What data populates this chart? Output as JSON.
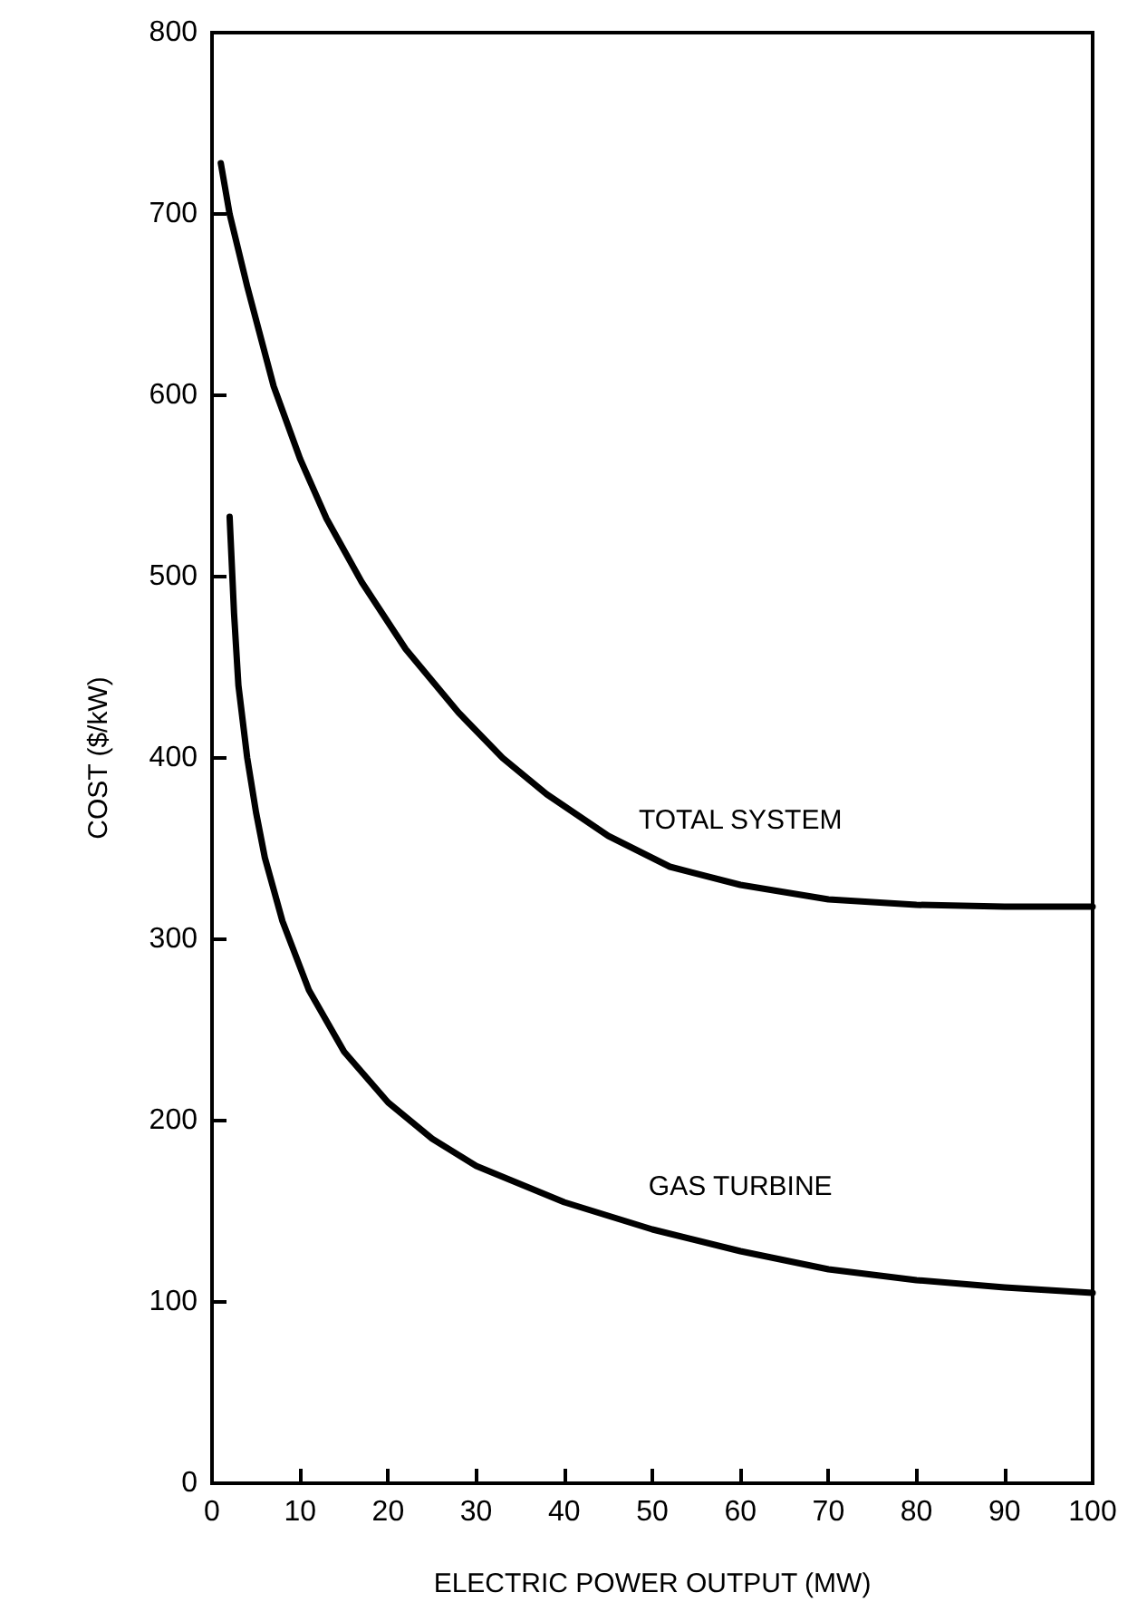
{
  "chart_data": {
    "type": "line",
    "xlabel": "ELECTRIC POWER OUTPUT (MW)",
    "ylabel": "COST ($/kW)",
    "xlim": [
      0,
      100
    ],
    "xticks": [
      0,
      10,
      20,
      30,
      40,
      50,
      60,
      70,
      80,
      90,
      100
    ],
    "ylim": [
      0,
      800
    ],
    "yticks": [
      0,
      100,
      200,
      300,
      400,
      500,
      600,
      700,
      800
    ],
    "grid": false,
    "legend": false,
    "marker": "none",
    "line_style": "solid",
    "series": [
      {
        "name": "TOTAL SYSTEM",
        "color": "#000000",
        "x": [
          1,
          2,
          4,
          7,
          10,
          13,
          17,
          22,
          28,
          33,
          38,
          45,
          52,
          60,
          70,
          80,
          90,
          100
        ],
        "values": [
          728,
          700,
          660,
          605,
          565,
          532,
          497,
          460,
          425,
          400,
          380,
          357,
          340,
          330,
          322,
          319,
          318,
          318
        ]
      },
      {
        "name": "GAS TURBINE",
        "color": "#000000",
        "x": [
          2,
          2.5,
          3,
          4,
          5,
          6,
          8,
          11,
          15,
          20,
          25,
          30,
          40,
          50,
          60,
          70,
          80,
          90,
          100
        ],
        "values": [
          533,
          480,
          440,
          400,
          370,
          345,
          310,
          272,
          238,
          210,
          190,
          175,
          155,
          140,
          128,
          118,
          112,
          108,
          105
        ]
      }
    ]
  }
}
